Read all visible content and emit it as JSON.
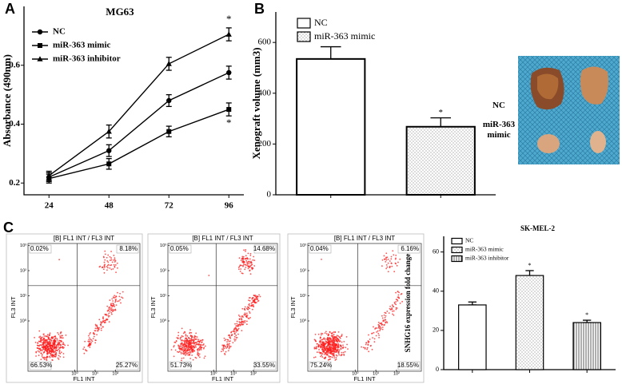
{
  "panels": [
    "A",
    "B",
    "C"
  ],
  "chart_data": [
    {
      "type": "line",
      "title": "MG63",
      "y_label": "Absorbance (490nm)",
      "x": [
        24,
        48,
        72,
        96
      ],
      "xlim": [
        14,
        102
      ],
      "xticks": [
        24,
        48,
        72,
        96
      ],
      "ylim": [
        0.16,
        0.8
      ],
      "yticks": [
        0.2,
        0.4,
        0.6
      ],
      "series": [
        {
          "name": "NC",
          "marker": "circle",
          "color": "#000000",
          "values": [
            0.22,
            0.31,
            0.48,
            0.575
          ],
          "errors": [
            0.015,
            0.02,
            0.02,
            0.022
          ]
        },
        {
          "name": "miR-363  mimic",
          "marker": "square",
          "color": "#000000",
          "values": [
            0.215,
            0.265,
            0.375,
            0.45
          ],
          "errors": [
            0.015,
            0.018,
            0.018,
            0.022
          ]
        },
        {
          "name": "miR-363  inhibitor",
          "marker": "triangle",
          "color": "#000000",
          "values": [
            0.225,
            0.375,
            0.605,
            0.705
          ],
          "errors": [
            0.015,
            0.022,
            0.022,
            0.022
          ]
        }
      ],
      "annotations": [
        "*",
        "*"
      ]
    },
    {
      "type": "bar",
      "y_label": "Xenograft volume (mm3)",
      "categories": [
        "NC",
        "miR-363 mimic"
      ],
      "fills": [
        "white",
        "dots"
      ],
      "values": [
        535,
        268
      ],
      "errors": [
        48,
        35
      ],
      "ylim": [
        0,
        720
      ],
      "yticks": [
        0,
        200,
        400,
        600
      ],
      "annotations": [
        "*"
      ],
      "photo_labels": [
        "NC",
        "miR-363 mimic"
      ]
    },
    {
      "type": "flow",
      "title": "[B] FL1 INT / FL3 INT",
      "x_label": "FL1 INT",
      "y_label": "FL3 INT",
      "xlim": [
        0.005,
        1600
      ],
      "ylim": [
        0.01,
        1200
      ],
      "log": true,
      "xticks": [
        {
          "value": 1,
          "label": "10⁰"
        },
        {
          "value": 10,
          "label": "10¹"
        },
        {
          "value": 100,
          "label": "10²"
        }
      ],
      "yticks": [
        {
          "value": 1,
          "label": "10⁰"
        },
        {
          "value": 10,
          "label": "10¹"
        },
        {
          "value": 100,
          "label": "10²"
        },
        {
          "value": 1000,
          "label": "10³"
        }
      ],
      "values": [
        0.02,
        8.18,
        66.53,
        25.27
      ],
      "value_labels": [
        "0.02%",
        "8.18%",
        "66.53%",
        "25.27%"
      ]
    },
    {
      "type": "flow",
      "title": "[B] FL1 INT / FL3 INT",
      "x_label": "FL1 INT",
      "y_label": "FL3 INT",
      "xlim": [
        0.005,
        1600
      ],
      "ylim": [
        0.01,
        1200
      ],
      "log": true,
      "xticks": [
        {
          "value": 1,
          "label": "10⁰"
        },
        {
          "value": 10,
          "label": "10¹"
        },
        {
          "value": 100,
          "label": "10²"
        }
      ],
      "yticks": [
        {
          "value": 1,
          "label": "10⁰"
        },
        {
          "value": 10,
          "label": "10¹"
        },
        {
          "value": 100,
          "label": "10²"
        },
        {
          "value": 1000,
          "label": "10³"
        }
      ],
      "values": [
        0.05,
        14.68,
        51.73,
        33.55
      ],
      "value_labels": [
        "0.05%",
        "14.68%",
        "51.73%",
        "33.55%"
      ]
    },
    {
      "type": "flow",
      "title": "[B] FL1 INT / FL3 INT",
      "x_label": "FL1 INT",
      "y_label": "FL3 INT",
      "xlim": [
        0.005,
        1600
      ],
      "ylim": [
        0.01,
        1200
      ],
      "log": true,
      "xticks": [
        {
          "value": 1,
          "label": "10⁰"
        },
        {
          "value": 10,
          "label": "10¹"
        },
        {
          "value": 100,
          "label": "10²"
        }
      ],
      "yticks": [
        {
          "value": 1,
          "label": "10⁰"
        },
        {
          "value": 10,
          "label": "10¹"
        },
        {
          "value": 100,
          "label": "10²"
        },
        {
          "value": 1000,
          "label": "10³"
        }
      ],
      "values": [
        0.04,
        6.16,
        75.24,
        18.55
      ],
      "value_labels": [
        "0.04%",
        "6.16%",
        "75.24%",
        "18.55%"
      ]
    },
    {
      "type": "bar",
      "title": "SK-MEL-2",
      "y_label": "SNHG16 expression fold change",
      "categories": [
        "NC",
        "miR-363 mimic",
        "miR-363  inhibitor"
      ],
      "fills": [
        "white",
        "dots",
        "vlines"
      ],
      "values": [
        33,
        48,
        24
      ],
      "errors": [
        1.5,
        2.5,
        1.2
      ],
      "ylim": [
        0,
        68
      ],
      "yticks": [
        0,
        20,
        40,
        60
      ],
      "annotations": [
        "*",
        "*"
      ]
    }
  ]
}
